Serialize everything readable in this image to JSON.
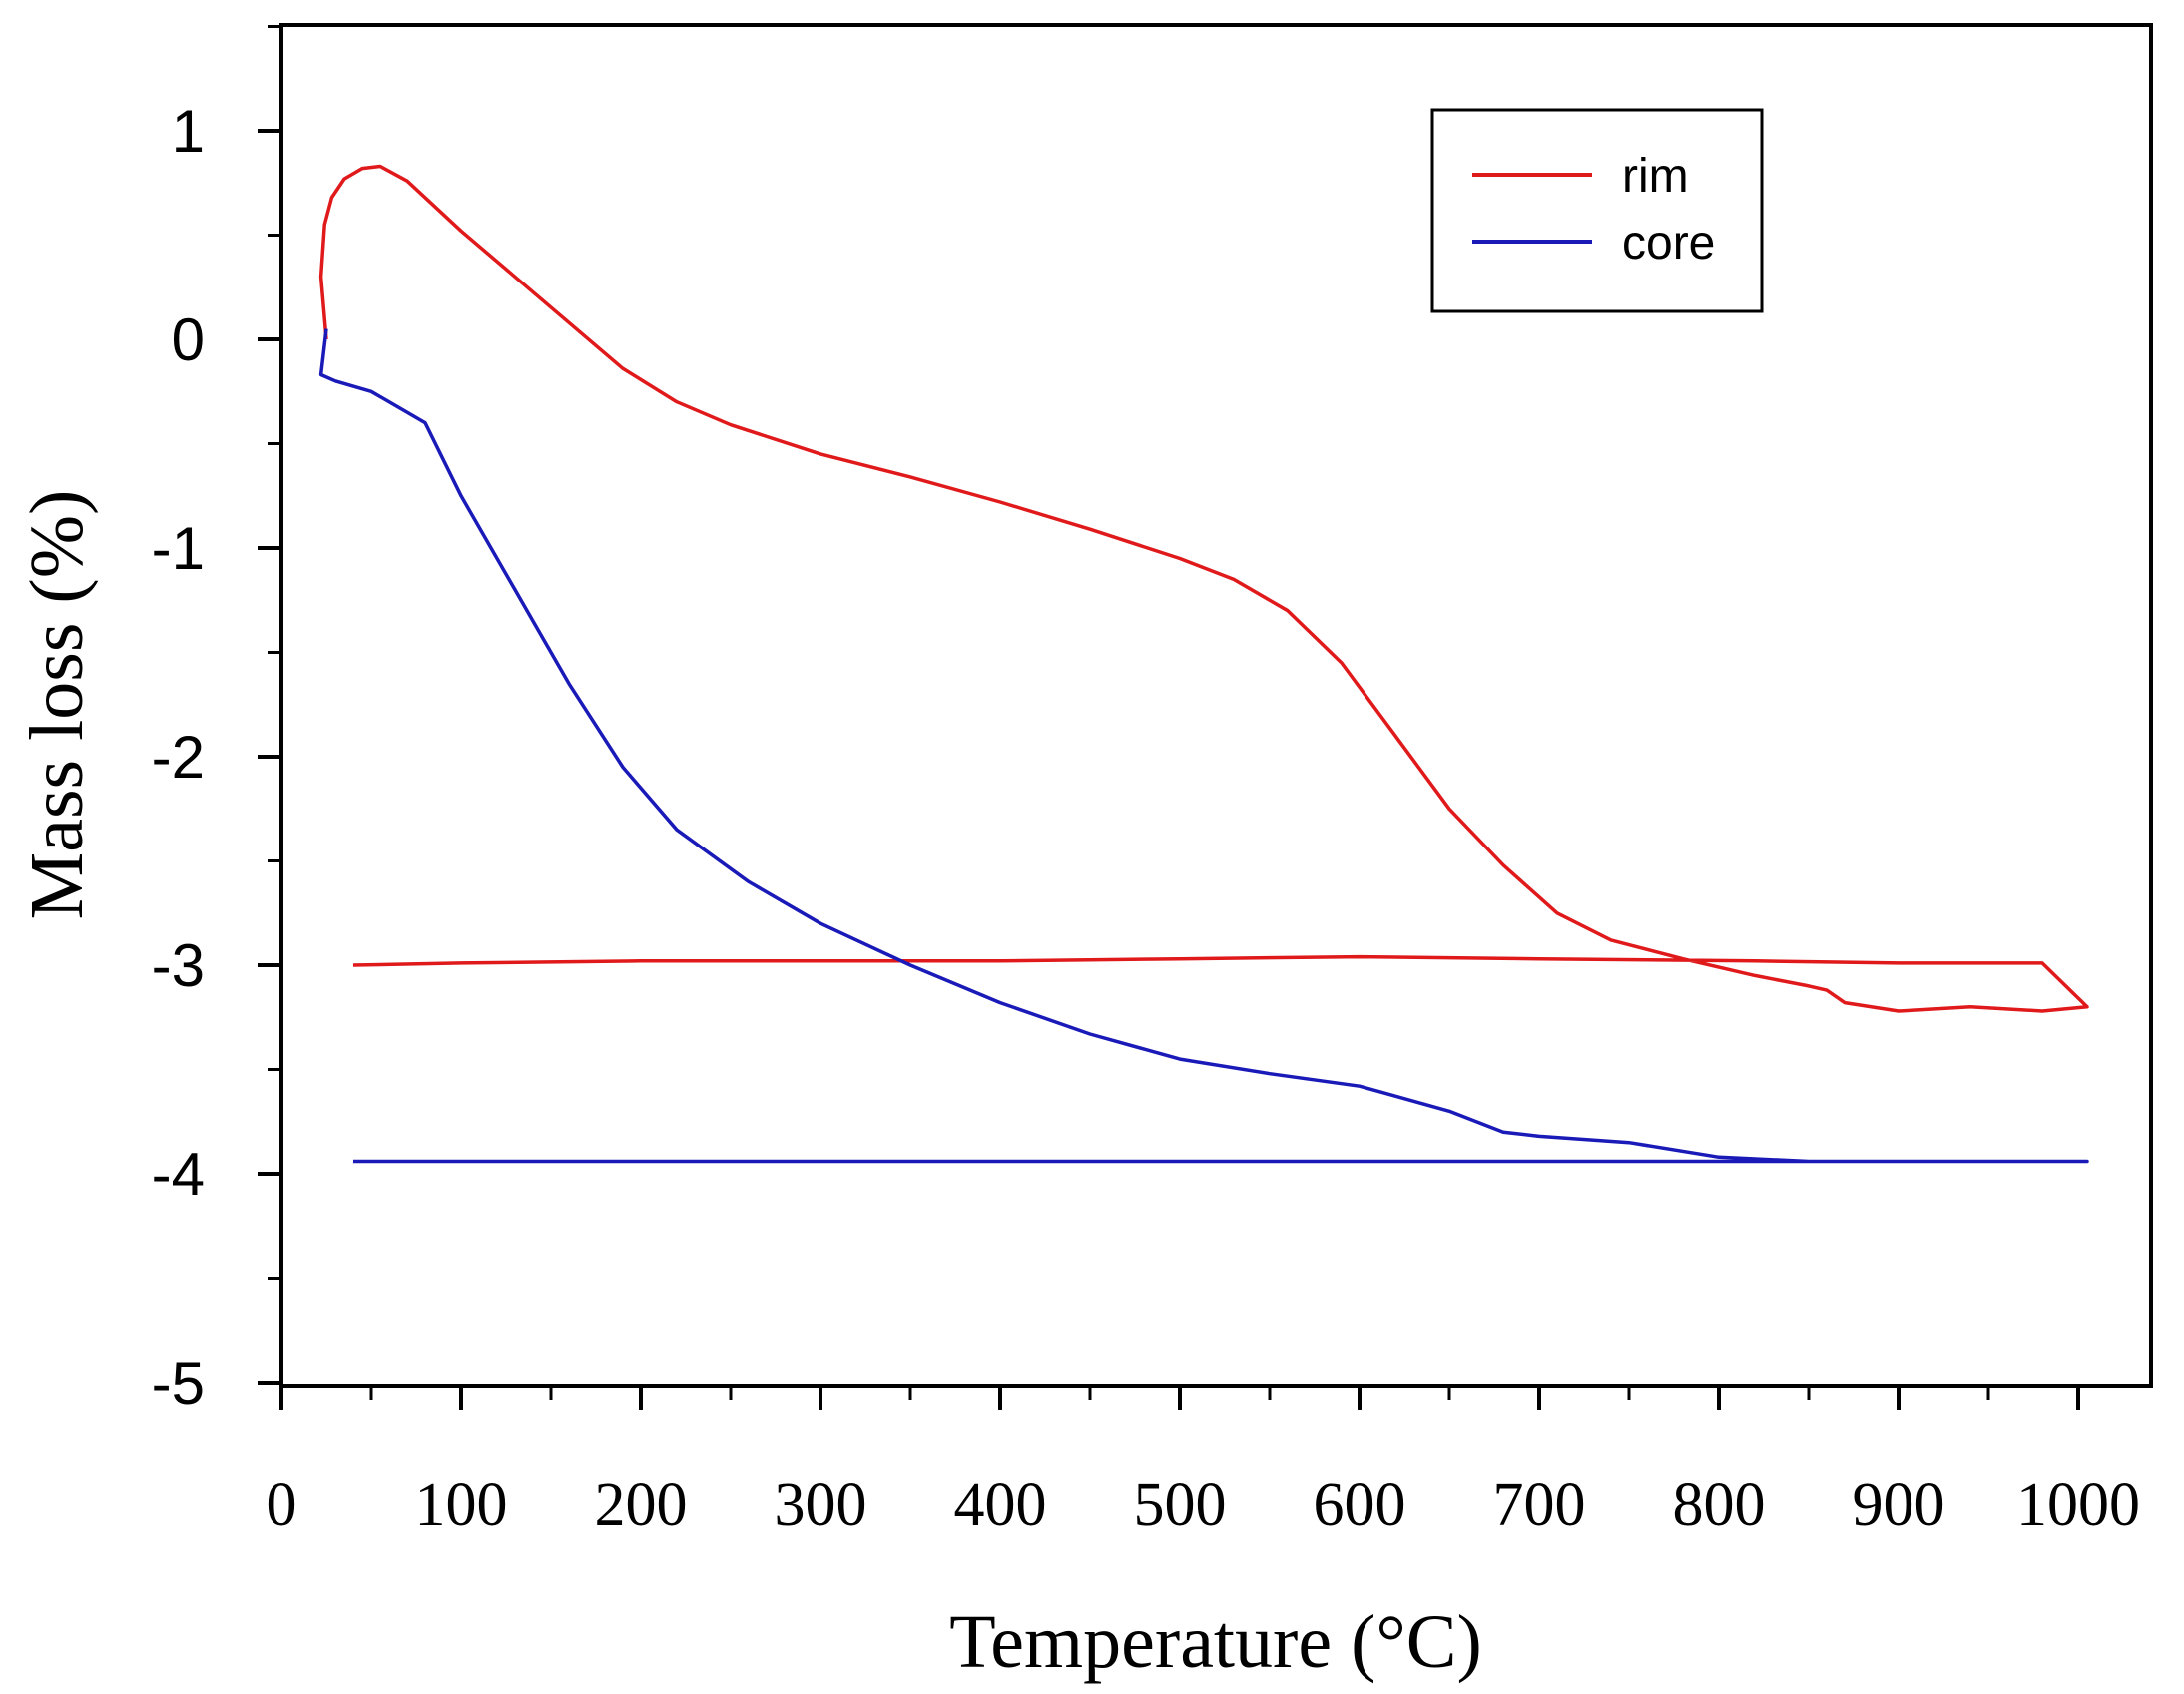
{
  "chart_data": {
    "type": "line",
    "title": "",
    "xlabel": "Temperature (°C)",
    "ylabel": "Mass loss (%)",
    "xlim": [
      0,
      1040
    ],
    "ylim": [
      -5,
      1.5
    ],
    "x_ticks": [
      0,
      100,
      200,
      300,
      400,
      500,
      600,
      700,
      800,
      900,
      1000
    ],
    "y_ticks": [
      1,
      0,
      -1,
      -2,
      -3,
      -4,
      -5
    ],
    "x_tick_labels": [
      "0",
      "100",
      "200",
      "300",
      "400",
      "500",
      "600",
      "700",
      "800",
      "900",
      "1000"
    ],
    "y_tick_labels": [
      "1",
      "0",
      "-1",
      "-2",
      "-3",
      "-4",
      "-5"
    ],
    "grid": false,
    "legend_position": "top-right",
    "series": [
      {
        "name": "rim",
        "color": "#e0191b",
        "points": [
          [
            25,
            0
          ],
          [
            22,
            0.3
          ],
          [
            24,
            0.55
          ],
          [
            28,
            0.68
          ],
          [
            35,
            0.77
          ],
          [
            45,
            0.82
          ],
          [
            55,
            0.83
          ],
          [
            70,
            0.76
          ],
          [
            100,
            0.52
          ],
          [
            130,
            0.3
          ],
          [
            160,
            0.08
          ],
          [
            190,
            -0.14
          ],
          [
            220,
            -0.3
          ],
          [
            250,
            -0.41
          ],
          [
            300,
            -0.55
          ],
          [
            350,
            -0.66
          ],
          [
            400,
            -0.78
          ],
          [
            450,
            -0.91
          ],
          [
            500,
            -1.05
          ],
          [
            530,
            -1.15
          ],
          [
            560,
            -1.3
          ],
          [
            590,
            -1.55
          ],
          [
            620,
            -1.9
          ],
          [
            650,
            -2.25
          ],
          [
            680,
            -2.52
          ],
          [
            710,
            -2.75
          ],
          [
            740,
            -2.88
          ],
          [
            780,
            -2.97
          ],
          [
            820,
            -3.05
          ],
          [
            850,
            -3.1
          ],
          [
            860,
            -3.12
          ],
          [
            870,
            -3.18
          ],
          [
            900,
            -3.22
          ],
          [
            940,
            -3.2
          ],
          [
            980,
            -3.22
          ],
          [
            1005,
            -3.2
          ],
          [
            980,
            -2.99
          ],
          [
            900,
            -2.99
          ],
          [
            820,
            -2.98
          ],
          [
            700,
            -2.97
          ],
          [
            600,
            -2.96
          ],
          [
            500,
            -2.97
          ],
          [
            400,
            -2.98
          ],
          [
            300,
            -2.98
          ],
          [
            200,
            -2.98
          ],
          [
            100,
            -2.99
          ],
          [
            40,
            -3.0
          ]
        ]
      },
      {
        "name": "core",
        "color": "#1a1ab8",
        "points": [
          [
            25,
            0.05
          ],
          [
            22,
            -0.17
          ],
          [
            30,
            -0.2
          ],
          [
            50,
            -0.25
          ],
          [
            80,
            -0.4
          ],
          [
            100,
            -0.75
          ],
          [
            130,
            -1.2
          ],
          [
            160,
            -1.65
          ],
          [
            190,
            -2.05
          ],
          [
            220,
            -2.35
          ],
          [
            260,
            -2.6
          ],
          [
            300,
            -2.8
          ],
          [
            350,
            -3.0
          ],
          [
            400,
            -3.18
          ],
          [
            450,
            -3.33
          ],
          [
            500,
            -3.45
          ],
          [
            550,
            -3.52
          ],
          [
            600,
            -3.58
          ],
          [
            650,
            -3.7
          ],
          [
            680,
            -3.8
          ],
          [
            700,
            -3.82
          ],
          [
            750,
            -3.85
          ],
          [
            800,
            -3.92
          ],
          [
            850,
            -3.94
          ],
          [
            900,
            -3.94
          ],
          [
            1005,
            -3.94
          ],
          [
            40,
            -3.94
          ]
        ]
      }
    ]
  }
}
